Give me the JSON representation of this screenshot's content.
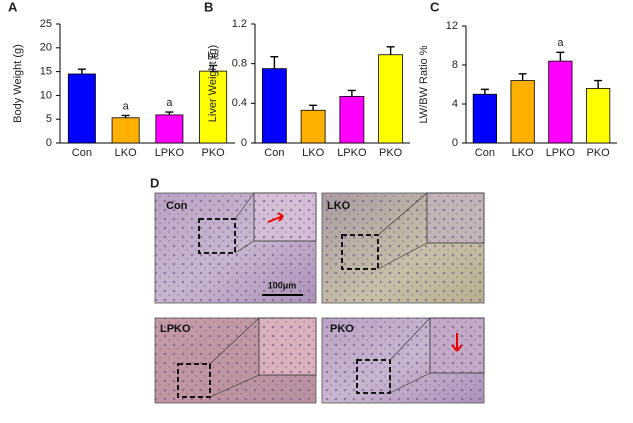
{
  "chart_data": [
    {
      "type": "bar",
      "panel": "A",
      "y_label": "Body Weight (g)",
      "categories": [
        "Con",
        "LKO",
        "LPKO",
        "PKO"
      ],
      "values": [
        14.5,
        5.3,
        5.9,
        15.1
      ],
      "errors": [
        1.0,
        0.5,
        0.6,
        1.2
      ],
      "annotations": [
        null,
        "a",
        "a",
        "bc"
      ],
      "colors": [
        "#0000ff",
        "#ffb000",
        "#ff00ff",
        "#ffff00"
      ],
      "ylim": [
        0,
        25
      ],
      "yticks": [
        0,
        5,
        10,
        15,
        20,
        25
      ]
    },
    {
      "type": "bar",
      "panel": "B",
      "y_label": "Liver Weight (g)",
      "categories": [
        "Con",
        "LKO",
        "LPKO",
        "PKO"
      ],
      "values": [
        0.75,
        0.33,
        0.47,
        0.89
      ],
      "errors": [
        0.12,
        0.05,
        0.06,
        0.08
      ],
      "annotations": [
        null,
        null,
        null,
        null
      ],
      "colors": [
        "#0000ff",
        "#ffb000",
        "#ff00ff",
        "#ffff00"
      ],
      "ylim": [
        0,
        1.2
      ],
      "yticks": [
        0,
        0.4,
        0.8,
        1.2
      ]
    },
    {
      "type": "bar",
      "panel": "C",
      "y_label": "LW/BW Ratio %",
      "categories": [
        "Con",
        "LKO",
        "LPKO",
        "PKO"
      ],
      "values": [
        5.0,
        6.4,
        8.4,
        5.6
      ],
      "errors": [
        0.5,
        0.7,
        0.9,
        0.8
      ],
      "annotations": [
        null,
        null,
        "a",
        null
      ],
      "colors": [
        "#0000ff",
        "#ffb000",
        "#ff00ff",
        "#ffff00"
      ],
      "ylim": [
        0,
        12
      ],
      "yticks": [
        0,
        4,
        8,
        12
      ]
    }
  ],
  "histology": {
    "panel": "D",
    "images": [
      "Con",
      "LKO",
      "LPKO",
      "PKO"
    ],
    "scale_bar": "100μm"
  }
}
